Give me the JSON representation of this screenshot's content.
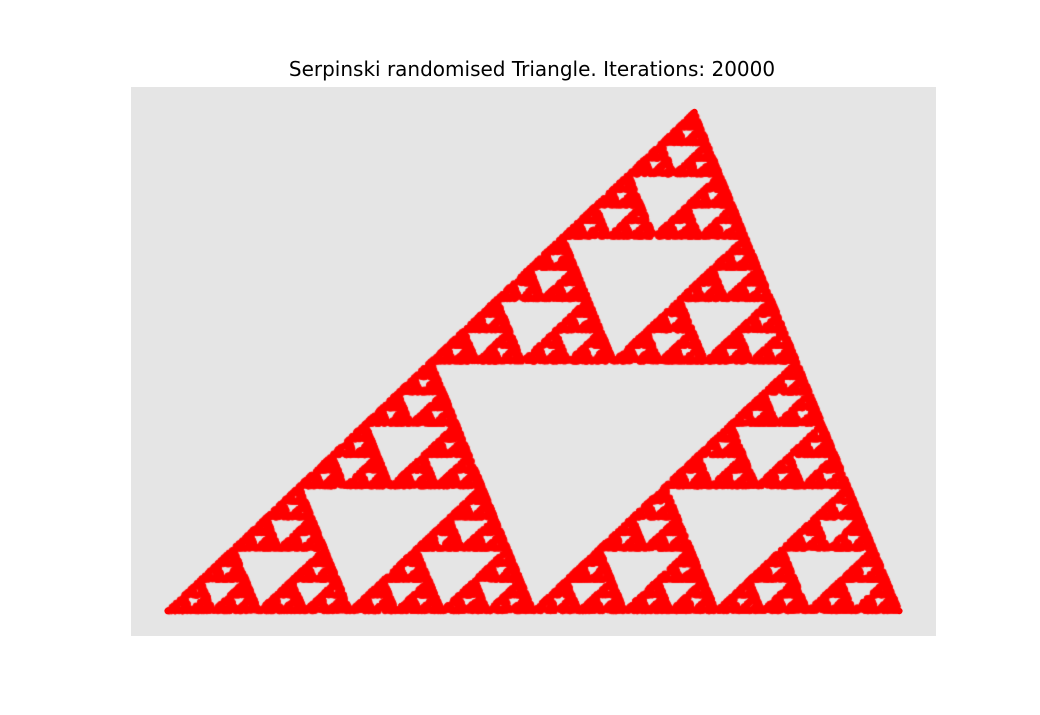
{
  "chart_data": {
    "type": "scatter",
    "title": "Serpinski randomised Triangle. Iterations: 20000",
    "iterations": 20000,
    "xlabel": "",
    "ylabel": "",
    "grid": false,
    "axes_visible": false,
    "point_color": "#ff0000",
    "background_color": "#e5e5e5",
    "vertices": [
      {
        "x": 0.0,
        "y": 0.0
      },
      {
        "x": 1.0,
        "y": 0.0
      },
      {
        "x": 0.72,
        "y": 1.0
      }
    ],
    "xlim": [
      -0.05,
      1.05
    ],
    "ylim": [
      -0.05,
      1.05
    ]
  }
}
